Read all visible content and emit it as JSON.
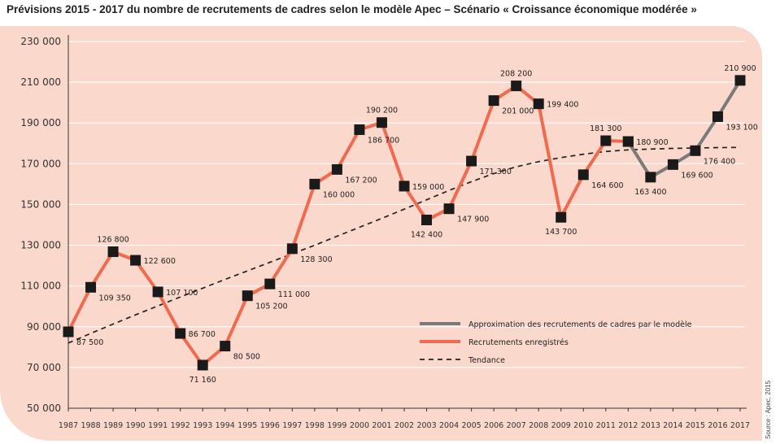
{
  "title": "Prévisions 2015 - 2017 du nombre de recrutements de cadres selon le modèle Apec – Scénario « Croissance économique modérée »",
  "source": "Source : Apec, 2015",
  "chart_data": {
    "type": "line",
    "title": "Prévisions 2015 - 2017 du nombre de recrutements de cadres selon le modèle Apec – Scénario « Croissance économique modérée »",
    "xlabel": "",
    "ylabel": "",
    "ylim": [
      50000,
      230000
    ],
    "yticks": [
      50000,
      70000,
      90000,
      110000,
      130000,
      150000,
      170000,
      190000,
      210000,
      230000
    ],
    "ytick_labels": [
      "50 000",
      "70 000",
      "90 000",
      "110 000",
      "130 000",
      "150 000",
      "170 000",
      "190 000",
      "210 000",
      "230 000"
    ],
    "categories": [
      "1987",
      "1988",
      "1989",
      "1990",
      "1991",
      "1992",
      "1993",
      "1994",
      "1995",
      "1996",
      "1997",
      "1998",
      "1999",
      "2000",
      "2001",
      "2002",
      "2003",
      "2004",
      "2005",
      "2006",
      "2007",
      "2008",
      "2009",
      "2010",
      "2011",
      "2012",
      "2013",
      "2014",
      "2015",
      "2016",
      "2017"
    ],
    "grid": "horizontal",
    "legend_position": "bottom-right",
    "series": [
      {
        "name": "Recrutements enregistrés",
        "color": "#ef6a4f",
        "values": [
          87500,
          109350,
          126800,
          122600,
          107100,
          86700,
          71160,
          80500,
          105200,
          111000,
          128300,
          160000,
          167200,
          186700,
          190200,
          159000,
          142400,
          147900,
          171300,
          201000,
          208200,
          199400,
          143700,
          164600,
          181300,
          180900,
          null,
          null,
          null,
          null,
          null
        ]
      },
      {
        "name": "Approximation des recrutements de cadres par le modèle",
        "color": "#7a7a7a",
        "values": [
          null,
          null,
          null,
          null,
          null,
          null,
          null,
          null,
          null,
          null,
          null,
          null,
          null,
          null,
          null,
          null,
          null,
          null,
          null,
          null,
          null,
          null,
          null,
          null,
          null,
          180900,
          163400,
          169600,
          176400,
          193100,
          210900
        ]
      },
      {
        "name": "Tendance",
        "color": "#222222",
        "style": "dashed",
        "values": [
          82000,
          86700,
          91300,
          95800,
          100200,
          104600,
          108900,
          113200,
          117400,
          121600,
          125800,
          130000,
          134400,
          138800,
          143200,
          147700,
          152300,
          156900,
          161200,
          165200,
          168500,
          171000,
          173000,
          174700,
          176000,
          176800,
          177200,
          177500,
          177700,
          177900,
          178000
        ]
      }
    ],
    "data_labels": [
      {
        "x": "1987",
        "text": "87 500"
      },
      {
        "x": "1988",
        "text": "109 350"
      },
      {
        "x": "1989",
        "text": "126 800"
      },
      {
        "x": "1990",
        "text": "122 600"
      },
      {
        "x": "1991",
        "text": "107 100"
      },
      {
        "x": "1992",
        "text": "86 700"
      },
      {
        "x": "1993",
        "text": "71 160"
      },
      {
        "x": "1994",
        "text": "80 500"
      },
      {
        "x": "1995",
        "text": "105 200"
      },
      {
        "x": "1996",
        "text": "111 000"
      },
      {
        "x": "1997",
        "text": "128 300"
      },
      {
        "x": "1998",
        "text": "160 000"
      },
      {
        "x": "1999",
        "text": "167 200"
      },
      {
        "x": "2000",
        "text": "186 700"
      },
      {
        "x": "2001",
        "text": "190 200"
      },
      {
        "x": "2002",
        "text": "159 000"
      },
      {
        "x": "2003",
        "text": "142 400"
      },
      {
        "x": "2004",
        "text": "147 900"
      },
      {
        "x": "2005",
        "text": "171 300"
      },
      {
        "x": "2006",
        "text": "201 000"
      },
      {
        "x": "2007",
        "text": "208 200"
      },
      {
        "x": "2008",
        "text": "199 400"
      },
      {
        "x": "2009",
        "text": "143 700"
      },
      {
        "x": "2010",
        "text": "164 600"
      },
      {
        "x": "2011",
        "text": "181 300"
      },
      {
        "x": "2012",
        "text": "180 900"
      },
      {
        "x": "2013",
        "text": "163 400"
      },
      {
        "x": "2014",
        "text": "169 600"
      },
      {
        "x": "2015",
        "text": "176 400"
      },
      {
        "x": "2016",
        "text": "193 100"
      },
      {
        "x": "2017",
        "text": "210 900"
      }
    ],
    "legend": [
      {
        "label": "Approximation des recrutements de cadres par le modèle",
        "color": "#7a7a7a",
        "style": "solid"
      },
      {
        "label": "Recrutements enregistrés",
        "color": "#ef6a4f",
        "style": "solid"
      },
      {
        "label": "Tendance",
        "color": "#222222",
        "style": "dashed"
      }
    ]
  }
}
